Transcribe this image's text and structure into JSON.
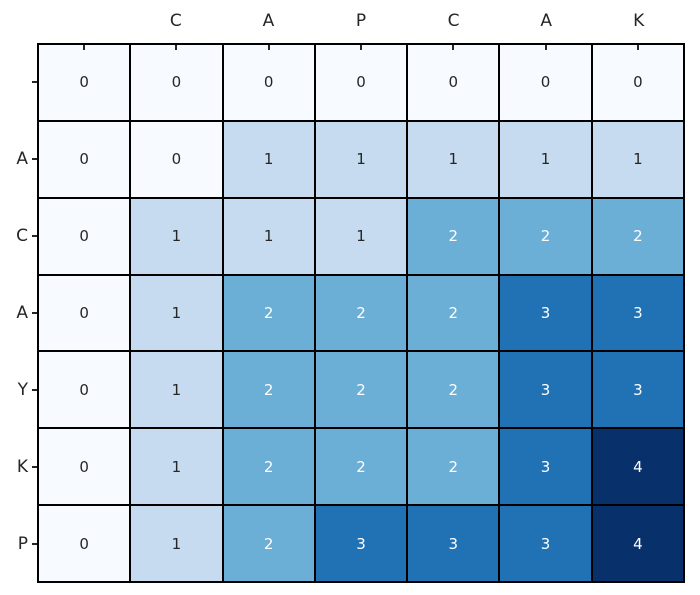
{
  "figure": {
    "background": "#ffffff",
    "grid_line_color": "#000000",
    "tick_color": "#262626",
    "label_color": "#262626"
  },
  "chart_data": {
    "type": "heatmap",
    "title": "",
    "xlabel": "",
    "ylabel": "",
    "x_axis_position": "top",
    "x_tick_labels": [
      "",
      "C",
      "A",
      "P",
      "C",
      "A",
      "K"
    ],
    "y_tick_labels": [
      "",
      "A",
      "C",
      "A",
      "Y",
      "K",
      "P"
    ],
    "values": [
      [
        0,
        0,
        0,
        0,
        0,
        0,
        0
      ],
      [
        0,
        0,
        1,
        1,
        1,
        1,
        1
      ],
      [
        0,
        1,
        1,
        1,
        2,
        2,
        2
      ],
      [
        0,
        1,
        2,
        2,
        2,
        3,
        3
      ],
      [
        0,
        1,
        2,
        2,
        2,
        3,
        3
      ],
      [
        0,
        1,
        2,
        2,
        2,
        3,
        4
      ],
      [
        0,
        1,
        2,
        3,
        3,
        3,
        4
      ]
    ],
    "value_range": [
      0,
      4
    ],
    "colormap": "Blues",
    "annotated": true,
    "legend": "none",
    "grid_on": true,
    "value_colors": [
      "#f7fbff",
      "#c6dbef",
      "#6baed6",
      "#2171b5",
      "#08306b"
    ],
    "annotation_text_colors": [
      "#262626",
      "#262626",
      "#ffffff",
      "#ffffff",
      "#ffffff"
    ]
  }
}
